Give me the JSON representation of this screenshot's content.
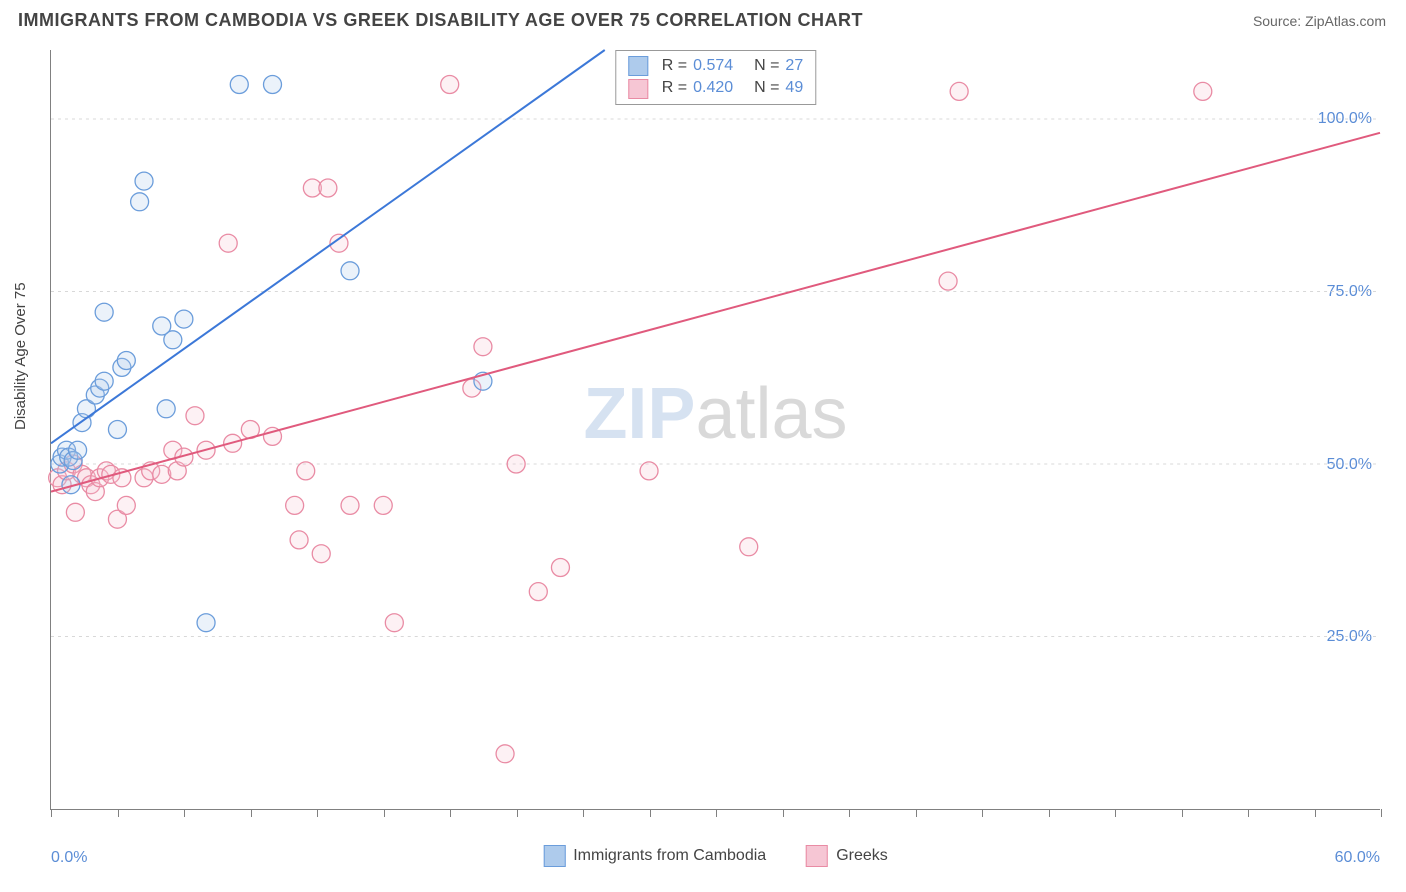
{
  "header": {
    "title": "IMMIGRANTS FROM CAMBODIA VS GREEK DISABILITY AGE OVER 75 CORRELATION CHART",
    "source": "Source: ZipAtlas.com"
  },
  "watermark": {
    "left": "ZIP",
    "right": "atlas"
  },
  "chart": {
    "type": "scatter",
    "y_axis_label": "Disability Age Over 75",
    "x_axis_label": "",
    "background_color": "#ffffff",
    "grid_color": "#d8d8d8",
    "axis_color": "#808080",
    "xlim": [
      0,
      60
    ],
    "ylim": [
      0,
      110
    ],
    "x_ticks": [
      0,
      30,
      60
    ],
    "x_tick_labels": [
      "0.0%",
      "",
      "60.0%"
    ],
    "y_ticks": [
      25,
      50,
      75,
      100
    ],
    "y_tick_labels": [
      "25.0%",
      "50.0%",
      "75.0%",
      "100.0%"
    ],
    "tick_minor_x": [
      0,
      3,
      6,
      9,
      12,
      15,
      18,
      21,
      24,
      27,
      30,
      33,
      36,
      39,
      42,
      45,
      48,
      51,
      54,
      57,
      60
    ],
    "tick_label_color": "#5b8dd6",
    "tick_label_fontsize": 16,
    "title_fontsize": 18,
    "title_color": "#444444",
    "marker_radius": 9,
    "marker_fill_opacity": 0.25,
    "marker_stroke_width": 1.3,
    "line_width": 2,
    "series": [
      {
        "name": "Immigrants from Cambodia",
        "color_stroke": "#6b9ddb",
        "color_fill": "#aecbec",
        "line_color": "#3c78d8",
        "R": "0.574",
        "N": "27",
        "trend": {
          "x1": 0,
          "y1": 53,
          "x2": 25,
          "y2": 110
        },
        "points": [
          [
            0.4,
            50
          ],
          [
            0.5,
            51
          ],
          [
            0.7,
            52
          ],
          [
            0.8,
            51
          ],
          [
            0.9,
            47
          ],
          [
            1.0,
            50.5
          ],
          [
            1.2,
            52
          ],
          [
            1.4,
            56
          ],
          [
            1.6,
            58
          ],
          [
            2.0,
            60
          ],
          [
            2.2,
            61
          ],
          [
            2.4,
            62
          ],
          [
            2.4,
            72
          ],
          [
            3.0,
            55
          ],
          [
            3.2,
            64
          ],
          [
            3.4,
            65
          ],
          [
            4.0,
            88
          ],
          [
            4.2,
            91
          ],
          [
            5.0,
            70
          ],
          [
            5.2,
            58
          ],
          [
            5.5,
            68
          ],
          [
            6.0,
            71
          ],
          [
            7.0,
            27
          ],
          [
            8.5,
            105
          ],
          [
            10.0,
            105
          ],
          [
            13.5,
            78
          ],
          [
            19.5,
            62
          ]
        ]
      },
      {
        "name": "Greeks",
        "color_stroke": "#e98ba4",
        "color_fill": "#f6c6d4",
        "line_color": "#e05a7d",
        "R": "0.420",
        "N": "49",
        "trend": {
          "x1": 0,
          "y1": 46,
          "x2": 60,
          "y2": 98
        },
        "points": [
          [
            0.3,
            48
          ],
          [
            0.5,
            47
          ],
          [
            0.7,
            49
          ],
          [
            1.0,
            50
          ],
          [
            1.1,
            43
          ],
          [
            1.4,
            48.5
          ],
          [
            1.6,
            48
          ],
          [
            1.8,
            47
          ],
          [
            2.0,
            46
          ],
          [
            2.2,
            48
          ],
          [
            2.5,
            49
          ],
          [
            2.7,
            48.5
          ],
          [
            3.0,
            42
          ],
          [
            3.2,
            48
          ],
          [
            3.4,
            44
          ],
          [
            4.2,
            48
          ],
          [
            4.5,
            49
          ],
          [
            5.0,
            48.5
          ],
          [
            5.5,
            52
          ],
          [
            5.7,
            49
          ],
          [
            6.0,
            51
          ],
          [
            6.5,
            57
          ],
          [
            7.0,
            52
          ],
          [
            8.0,
            82
          ],
          [
            8.2,
            53
          ],
          [
            9.0,
            55
          ],
          [
            10.0,
            54
          ],
          [
            11.0,
            44
          ],
          [
            11.2,
            39
          ],
          [
            11.5,
            49
          ],
          [
            11.8,
            90
          ],
          [
            12.2,
            37
          ],
          [
            12.5,
            90
          ],
          [
            13.0,
            82
          ],
          [
            13.5,
            44
          ],
          [
            15.0,
            44
          ],
          [
            15.5,
            27
          ],
          [
            18.0,
            105
          ],
          [
            19.0,
            61
          ],
          [
            19.5,
            67
          ],
          [
            20.5,
            8
          ],
          [
            21.0,
            50
          ],
          [
            22.0,
            31.5
          ],
          [
            23.0,
            35
          ],
          [
            27.0,
            49
          ],
          [
            31.5,
            38
          ],
          [
            40.5,
            76.5
          ],
          [
            41.0,
            104
          ],
          [
            52.0,
            104
          ]
        ]
      }
    ],
    "legend_bottom": [
      {
        "label": "Immigrants from Cambodia",
        "swatch_fill": "#aecbec",
        "swatch_stroke": "#6b9ddb"
      },
      {
        "label": "Greeks",
        "swatch_fill": "#f6c6d4",
        "swatch_stroke": "#e98ba4"
      }
    ],
    "legend_top": {
      "rows": [
        {
          "swatch_fill": "#aecbec",
          "swatch_stroke": "#6b9ddb",
          "R_label": "R =",
          "R_val": "0.574",
          "N_label": "N =",
          "N_val": "27"
        },
        {
          "swatch_fill": "#f6c6d4",
          "swatch_stroke": "#e98ba4",
          "R_label": "R =",
          "R_val": "0.420",
          "N_label": "N =",
          "N_val": "49"
        }
      ]
    }
  }
}
